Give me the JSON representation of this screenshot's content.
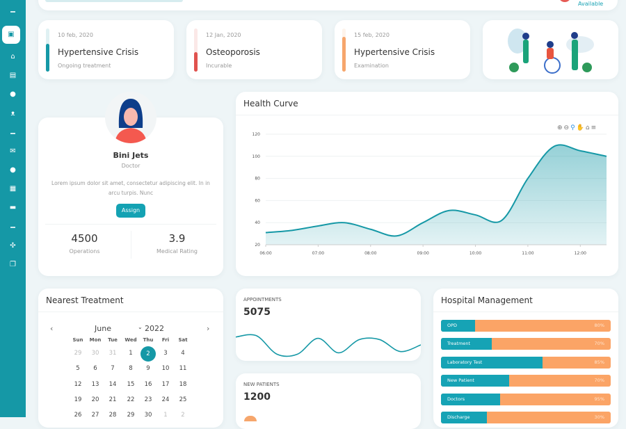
{
  "topbar": {
    "status": "Available"
  },
  "sidebar": {
    "icons": [
      "minus",
      "profile-card",
      "home",
      "briefcase",
      "user-doctor",
      "group",
      "minus",
      "envelope",
      "user",
      "calendar",
      "chat",
      "minus",
      "grid",
      "copy"
    ]
  },
  "diagnoses": [
    {
      "date": "10 feb, 2020",
      "title": "Hypertensive Crisis",
      "status": "Ongoing treatment",
      "color": "#1598a6",
      "level": 0.65
    },
    {
      "date": "12 Jan, 2020",
      "title": "Osteoporosis",
      "status": "Incurable",
      "color": "#e0524e",
      "level": 0.45
    },
    {
      "date": "15 feb, 2020",
      "title": "Hypertensive Crisis",
      "status": "Examination",
      "color": "#f6a66c",
      "level": 0.8
    }
  ],
  "profile": {
    "name": "Bini Jets",
    "role": "Doctor",
    "bio": "Lorem ipsum dolor sit amet, consectetur adipiscing elit. In in arcu turpis. Nunc",
    "assign": "Assign",
    "stats": [
      {
        "value": "4500",
        "label": "Operations"
      },
      {
        "value": "3.9",
        "label": "Medical Rating"
      }
    ]
  },
  "chart_data": {
    "type": "area",
    "title": "Health Curve",
    "x": [
      "06:00",
      "06:30",
      "07:00",
      "07:30",
      "08:00",
      "08:30",
      "09:00",
      "09:30",
      "10:00",
      "10:30",
      "11:00",
      "11:30",
      "12:00",
      "12:30"
    ],
    "values": [
      31,
      33,
      37,
      40,
      34,
      28,
      40,
      51,
      47,
      42,
      80,
      109,
      105,
      100
    ],
    "xticks": [
      "06:00",
      "07:00",
      "08:00",
      "09:00",
      "10:00",
      "11:00",
      "12:00"
    ],
    "yticks": [
      "20",
      "40",
      "60",
      "80",
      "100",
      "120"
    ],
    "ylim": [
      20,
      120
    ],
    "grid": true,
    "color": "#1598a6"
  },
  "calendar": {
    "title": "Nearest Treatment",
    "month": "June",
    "year": "2022",
    "weekdays": [
      "Sun",
      "Mon",
      "Tue",
      "Wed",
      "Thu",
      "Fri",
      "Sat"
    ],
    "weeks": [
      [
        "29",
        "30",
        "31",
        "1",
        "2",
        "3",
        "4"
      ],
      [
        "5",
        "6",
        "7",
        "8",
        "9",
        "10",
        "11"
      ],
      [
        "12",
        "13",
        "14",
        "15",
        "16",
        "17",
        "18"
      ],
      [
        "19",
        "20",
        "21",
        "22",
        "23",
        "24",
        "25"
      ],
      [
        "26",
        "27",
        "28",
        "29",
        "30",
        "1",
        "2"
      ]
    ],
    "selected": "2"
  },
  "appointments": {
    "label": "APPOINTMENTS",
    "value": "5075",
    "trend": [
      48,
      50,
      22,
      22,
      46,
      24,
      44,
      44,
      26,
      36
    ]
  },
  "new_patients": {
    "label": "NEW PATIENTS",
    "value": "1200"
  },
  "hospital": {
    "title": "Hospital Management",
    "items": [
      {
        "label": "OPD",
        "percent": "80%",
        "share": 0.2
      },
      {
        "label": "Treatment",
        "percent": "70%",
        "share": 0.3
      },
      {
        "label": "Laboratory Test",
        "percent": "85%",
        "share": 0.6
      },
      {
        "label": "New Patient",
        "percent": "70%",
        "share": 0.4
      },
      {
        "label": "Doctors",
        "percent": "95%",
        "share": 0.35
      },
      {
        "label": "Discharge",
        "percent": "30%",
        "share": 0.27
      }
    ]
  }
}
